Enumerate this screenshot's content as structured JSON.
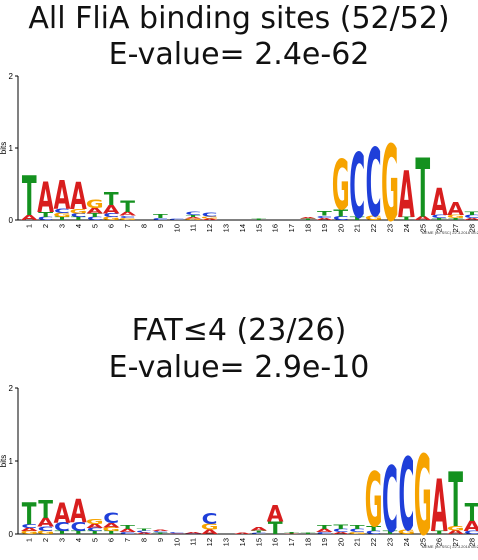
{
  "colors": {
    "A": "#d81e1e",
    "C": "#1f3fd9",
    "G": "#f6a300",
    "T": "#14911f"
  },
  "panels": [
    {
      "title": "All FliA binding sites (52/52)",
      "evalue": "E-value= 2.4e-62",
      "ylabel": "bits",
      "yticks": [
        "0",
        "1",
        "2"
      ],
      "footer": "MEME (no SSC) 22.3.2016 08:21",
      "positions": [
        [
          [
            "T",
            0.55
          ],
          [
            "A",
            0.07
          ]
        ],
        [
          [
            "A",
            0.42
          ],
          [
            "T",
            0.07
          ],
          [
            "C",
            0.04
          ]
        ],
        [
          [
            "A",
            0.4
          ],
          [
            "G",
            0.06
          ],
          [
            "C",
            0.06
          ],
          [
            "T",
            0.04
          ]
        ],
        [
          [
            "A",
            0.38
          ],
          [
            "G",
            0.06
          ],
          [
            "C",
            0.05
          ],
          [
            "T",
            0.04
          ]
        ],
        [
          [
            "G",
            0.12
          ],
          [
            "A",
            0.08
          ],
          [
            "T",
            0.05
          ],
          [
            "C",
            0.04
          ]
        ],
        [
          [
            "T",
            0.18
          ],
          [
            "A",
            0.12
          ],
          [
            "C",
            0.05
          ],
          [
            "G",
            0.04
          ]
        ],
        [
          [
            "T",
            0.16
          ],
          [
            "A",
            0.05
          ],
          [
            "G",
            0.03
          ],
          [
            "C",
            0.03
          ]
        ],
        [],
        [
          [
            "T",
            0.05
          ],
          [
            "C",
            0.03
          ]
        ],
        [
          [
            "C",
            0.02
          ]
        ],
        [
          [
            "C",
            0.04
          ],
          [
            "T",
            0.03
          ],
          [
            "G",
            0.02
          ],
          [
            "A",
            0.02
          ]
        ],
        [
          [
            "C",
            0.05
          ],
          [
            "G",
            0.03
          ],
          [
            "A",
            0.02
          ]
        ],
        [],
        [],
        [
          [
            "T",
            0.015
          ]
        ],
        [],
        [],
        [
          [
            "T",
            0.02
          ],
          [
            "A",
            0.02
          ]
        ],
        [
          [
            "T",
            0.06
          ],
          [
            "A",
            0.03
          ],
          [
            "C",
            0.03
          ]
        ],
        [
          [
            "G",
            0.7
          ],
          [
            "T",
            0.1
          ],
          [
            "C",
            0.05
          ]
        ],
        [
          [
            "C",
            0.9
          ],
          [
            "T",
            0.04
          ]
        ],
        [
          [
            "C",
            0.95
          ],
          [
            "G",
            0.06
          ]
        ],
        [
          [
            "G",
            1.06
          ]
        ],
        [
          [
            "A",
            0.65
          ],
          [
            "T",
            0.04
          ]
        ],
        [
          [
            "T",
            0.82
          ],
          [
            "A",
            0.05
          ]
        ],
        [
          [
            "A",
            0.38
          ],
          [
            "C",
            0.04
          ],
          [
            "T",
            0.03
          ]
        ],
        [
          [
            "A",
            0.18
          ],
          [
            "G",
            0.04
          ],
          [
            "T",
            0.03
          ]
        ],
        [
          [
            "C",
            0.04
          ],
          [
            "T",
            0.04
          ],
          [
            "A",
            0.03
          ]
        ]
      ]
    },
    {
      "title": "FAT≤4 (23/26)",
      "evalue": "E-value= 2.9e-10",
      "ylabel": "bits",
      "yticks": [
        "0",
        "1",
        "2"
      ],
      "footer": "MEME (no SSC) 22.3.2016 08:21",
      "positions": [
        [
          [
            "T",
            0.3
          ],
          [
            "C",
            0.05
          ],
          [
            "G",
            0.04
          ],
          [
            "A",
            0.04
          ]
        ],
        [
          [
            "T",
            0.25
          ],
          [
            "A",
            0.12
          ],
          [
            "C",
            0.06
          ],
          [
            "G",
            0.04
          ]
        ],
        [
          [
            "A",
            0.28
          ],
          [
            "C",
            0.12
          ],
          [
            "T",
            0.04
          ]
        ],
        [
          [
            "A",
            0.32
          ],
          [
            "C",
            0.12
          ],
          [
            "T",
            0.04
          ]
        ],
        [
          [
            "G",
            0.07
          ],
          [
            "A",
            0.06
          ],
          [
            "T",
            0.04
          ],
          [
            "C",
            0.04
          ]
        ],
        [
          [
            "C",
            0.14
          ],
          [
            "A",
            0.06
          ],
          [
            "G",
            0.05
          ],
          [
            "T",
            0.04
          ]
        ],
        [
          [
            "T",
            0.05
          ],
          [
            "A",
            0.04
          ],
          [
            "C",
            0.03
          ]
        ],
        [
          [
            "C",
            0.03
          ],
          [
            "T",
            0.03
          ],
          [
            "A",
            0.02
          ]
        ],
        [
          [
            "T",
            0.02
          ],
          [
            "C",
            0.02
          ],
          [
            "A",
            0.02
          ]
        ],
        [
          [
            "C",
            0.02
          ],
          [
            "A",
            0.01
          ]
        ],
        [
          [
            "A",
            0.02
          ],
          [
            "C",
            0.01
          ]
        ],
        [
          [
            "C",
            0.15
          ],
          [
            "G",
            0.08
          ],
          [
            "A",
            0.06
          ]
        ],
        [],
        [
          [
            "A",
            0.02
          ]
        ],
        [
          [
            "A",
            0.04
          ],
          [
            "T",
            0.03
          ],
          [
            "C",
            0.02
          ]
        ],
        [
          [
            "A",
            0.22
          ],
          [
            "T",
            0.17
          ]
        ],
        [
          [
            "T",
            0.02
          ],
          [
            "A",
            0.01
          ]
        ],
        [
          [
            "T",
            0.02
          ]
        ],
        [
          [
            "T",
            0.05
          ],
          [
            "A",
            0.04
          ],
          [
            "C",
            0.03
          ]
        ],
        [
          [
            "T",
            0.06
          ],
          [
            "C",
            0.04
          ],
          [
            "A",
            0.03
          ]
        ],
        [
          [
            "T",
            0.05
          ],
          [
            "C",
            0.04
          ],
          [
            "G",
            0.03
          ]
        ],
        [
          [
            "G",
            0.75
          ],
          [
            "T",
            0.07
          ],
          [
            "C",
            0.04
          ]
        ],
        [
          [
            "C",
            0.9
          ],
          [
            "T",
            0.04
          ]
        ],
        [
          [
            "C",
            1.0
          ],
          [
            "G",
            0.06
          ]
        ],
        [
          [
            "G",
            1.1
          ]
        ],
        [
          [
            "A",
            0.72
          ],
          [
            "T",
            0.04
          ]
        ],
        [
          [
            "T",
            0.75
          ],
          [
            "G",
            0.06
          ],
          [
            "A",
            0.05
          ]
        ],
        [
          [
            "T",
            0.25
          ],
          [
            "A",
            0.14
          ],
          [
            "C",
            0.04
          ]
        ]
      ]
    }
  ]
}
